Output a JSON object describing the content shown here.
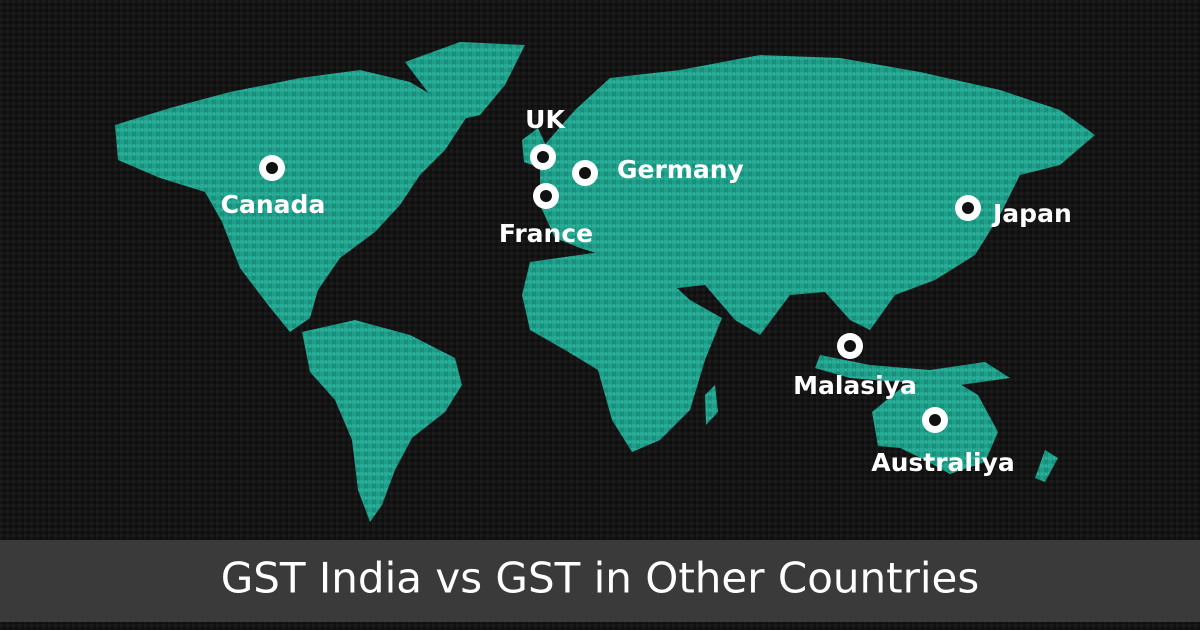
{
  "title": "GST India vs GST in Other Countries",
  "markers": [
    {
      "label": "Canada"
    },
    {
      "label": "UK"
    },
    {
      "label": "Germany"
    },
    {
      "label": "France"
    },
    {
      "label": "Japan"
    },
    {
      "label": "Malasiya"
    },
    {
      "label": "Australiya"
    }
  ]
}
